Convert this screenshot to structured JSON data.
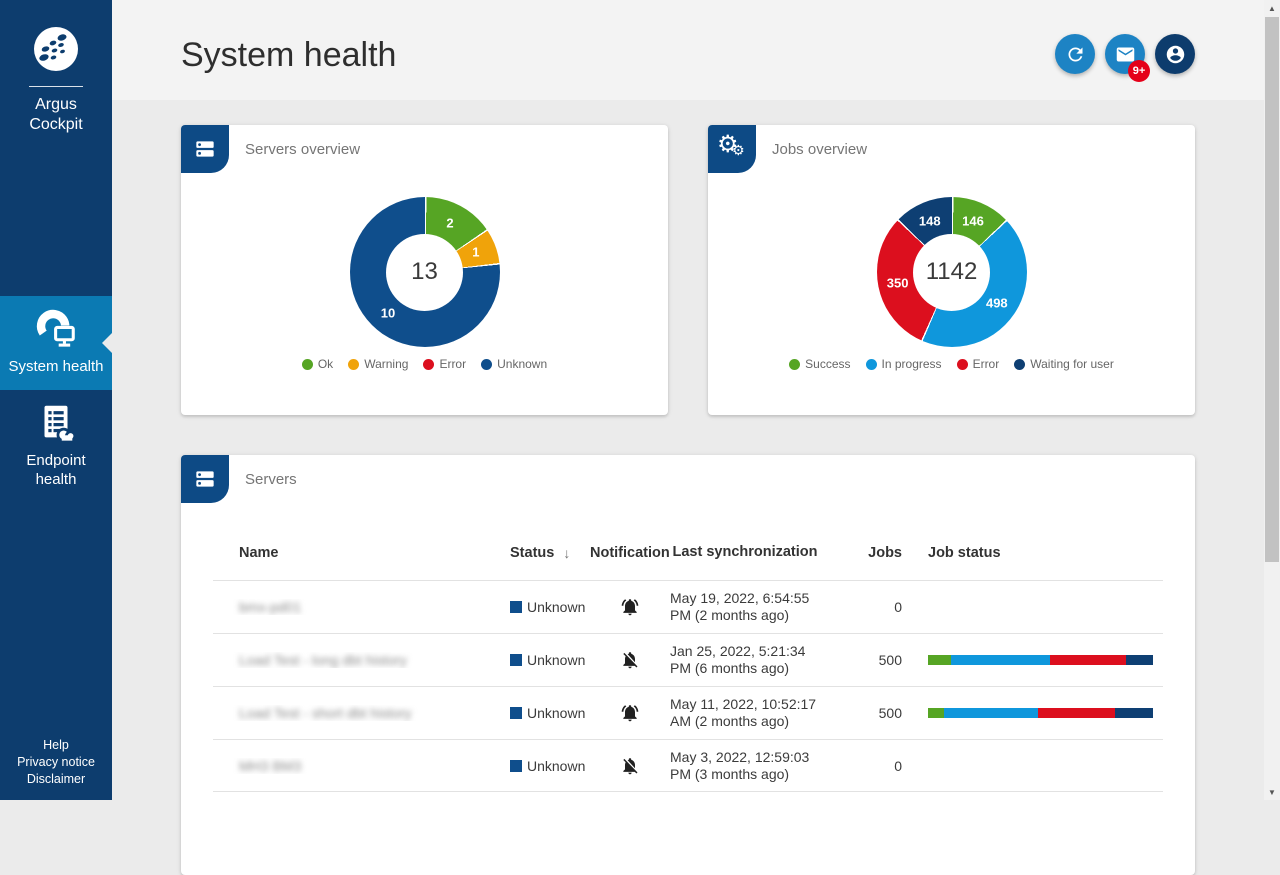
{
  "app": {
    "brand": "Argus Cockpit"
  },
  "sidebar": {
    "items": [
      {
        "label": "System health",
        "icon": "system-health-icon",
        "active": true
      },
      {
        "label": "Endpoint health",
        "icon": "endpoint-health-icon",
        "active": false
      }
    ],
    "footer_links": [
      "Help",
      "Privacy notice",
      "Disclaimer"
    ]
  },
  "header": {
    "title": "System health",
    "buttons": [
      {
        "id": "refresh",
        "icon": "refresh-icon",
        "style": "blue"
      },
      {
        "id": "messages",
        "icon": "mail-icon",
        "style": "blue",
        "badge": "9+"
      },
      {
        "id": "account",
        "icon": "account-icon",
        "style": "navy"
      }
    ]
  },
  "cards": {
    "servers_overview": {
      "title": "Servers overview",
      "icon": "servers-icon"
    },
    "jobs_overview": {
      "title": "Jobs overview",
      "icon": "gears-icon"
    },
    "servers": {
      "title": "Servers",
      "icon": "servers-icon"
    }
  },
  "chart_data": [
    {
      "type": "pie",
      "title": "Servers overview",
      "center_total": "13",
      "legend_position": "bottom",
      "slices": [
        {
          "label": "Ok",
          "value": 2,
          "color": "#56a524"
        },
        {
          "label": "Warning",
          "value": 1,
          "color": "#f0a30a"
        },
        {
          "label": "Error",
          "value": 0,
          "color": "#dc0f1e"
        },
        {
          "label": "Unknown",
          "value": 10,
          "color": "#0f4e8c"
        }
      ]
    },
    {
      "type": "pie",
      "title": "Jobs overview",
      "center_total": "1142",
      "legend_position": "bottom",
      "slices": [
        {
          "label": "Success",
          "value": 146,
          "color": "#56a524"
        },
        {
          "label": "In progress",
          "value": 498,
          "color": "#0f97dc"
        },
        {
          "label": "Error",
          "value": 350,
          "color": "#dc0f1e"
        },
        {
          "label": "Waiting for user",
          "value": 148,
          "color": "#0e3f73"
        }
      ]
    }
  ],
  "table": {
    "columns": [
      "Name",
      "Status",
      "Notifications",
      "Last synchronization",
      "Jobs",
      "Job status"
    ],
    "sort_column": "Status",
    "sort_icon": "↓",
    "status_color": "#0f4e8c",
    "bar_colors": [
      "#56a524",
      "#0f97dc",
      "#dc0f1e",
      "#0e3f73"
    ],
    "rows": [
      {
        "name": "bmx-pd01",
        "redacted": true,
        "status": "Unknown",
        "notifications": "on",
        "last_sync": "May 19, 2022, 6:54:55 PM (2 months ago)",
        "jobs": "0",
        "bar": null
      },
      {
        "name": "Load Test - long dbt history",
        "redacted": true,
        "status": "Unknown",
        "notifications": "off",
        "last_sync": "Jan 25, 2022, 5:21:34 PM (6 months ago)",
        "jobs": "500",
        "bar": [
          10,
          44,
          34,
          12
        ]
      },
      {
        "name": "Load Test - short dbt history",
        "redacted": true,
        "status": "Unknown",
        "notifications": "on",
        "last_sync": "May 11, 2022, 10:52:17 AM (2 months ago)",
        "jobs": "500",
        "bar": [
          7,
          42,
          34,
          17
        ]
      },
      {
        "name": "MH3 BM3",
        "redacted": true,
        "status": "Unknown",
        "notifications": "off",
        "last_sync": "May 3, 2022, 12:59:03 PM (3 months ago)",
        "jobs": "0",
        "bar": null
      }
    ]
  },
  "colors": {
    "sidebar_bg": "#0d3d6e",
    "active_item_bg": "#0b7ab3",
    "accent_blue": "#1d83c4",
    "button_navy": "#0d3c6d",
    "badge_red": "#e50019",
    "card_badge_navy": "#0d4a85"
  }
}
